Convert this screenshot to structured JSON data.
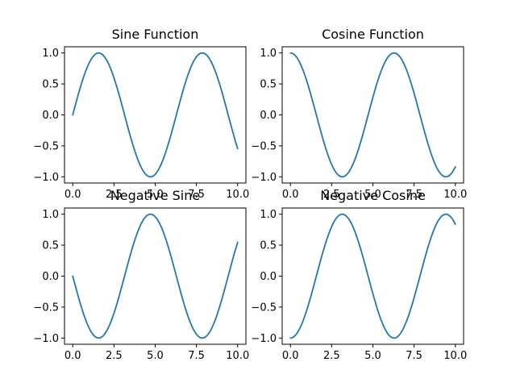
{
  "chart_data": [
    {
      "type": "line",
      "title": "Sine Function",
      "function": "sin(x)",
      "x_range": [
        0,
        10
      ],
      "ylim": [
        -1.1,
        1.1
      ],
      "xticks": [
        "0.0",
        "2.5",
        "5.0",
        "7.5",
        "10.0"
      ],
      "yticks": [
        "−1.0",
        "−0.5",
        "0.0",
        "0.5",
        "1.0"
      ],
      "series": [
        {
          "color": "#1f77b4",
          "x": [
            0,
            1.5708,
            3.1416,
            4.7124,
            6.2832,
            7.854,
            9.4248,
            10
          ],
          "y": [
            0,
            1,
            0,
            -1,
            0,
            1,
            0,
            -0.544
          ]
        }
      ],
      "grid": false
    },
    {
      "type": "line",
      "title": "Cosine Function",
      "function": "cos(x)",
      "x_range": [
        0,
        10
      ],
      "ylim": [
        -1.1,
        1.1
      ],
      "xticks": [
        "0.0",
        "2.5",
        "5.0",
        "7.5",
        "10.0"
      ],
      "yticks": [
        "−1.0",
        "−0.5",
        "0.0",
        "0.5",
        "1.0"
      ],
      "series": [
        {
          "color": "#1f77b4",
          "x": [
            0,
            1.5708,
            3.1416,
            4.7124,
            6.2832,
            7.854,
            9.4248,
            10
          ],
          "y": [
            1,
            0,
            -1,
            0,
            1,
            0,
            -1,
            -0.839
          ]
        }
      ],
      "grid": false
    },
    {
      "type": "line",
      "title": "Negative Sine",
      "function": "-sin(x)",
      "x_range": [
        0,
        10
      ],
      "ylim": [
        -1.1,
        1.1
      ],
      "xticks": [
        "0.0",
        "2.5",
        "5.0",
        "7.5",
        "10.0"
      ],
      "yticks": [
        "−1.0",
        "−0.5",
        "0.0",
        "0.5",
        "1.0"
      ],
      "series": [
        {
          "color": "#1f77b4",
          "x": [
            0,
            1.5708,
            3.1416,
            4.7124,
            6.2832,
            7.854,
            9.4248,
            10
          ],
          "y": [
            0,
            -1,
            0,
            1,
            0,
            -1,
            0,
            0.544
          ]
        }
      ],
      "grid": false
    },
    {
      "type": "line",
      "title": "Negative Cosine",
      "function": "-cos(x)",
      "x_range": [
        0,
        10
      ],
      "ylim": [
        -1.1,
        1.1
      ],
      "xticks": [
        "0.0",
        "2.5",
        "5.0",
        "7.5",
        "10.0"
      ],
      "yticks": [
        "−1.0",
        "−0.5",
        "0.0",
        "0.5",
        "1.0"
      ],
      "series": [
        {
          "color": "#1f77b4",
          "x": [
            0,
            1.5708,
            3.1416,
            4.7124,
            6.2832,
            7.854,
            9.4248,
            10
          ],
          "y": [
            -1,
            0,
            1,
            0,
            -1,
            0,
            1,
            0.839
          ]
        }
      ],
      "grid": false
    }
  ]
}
